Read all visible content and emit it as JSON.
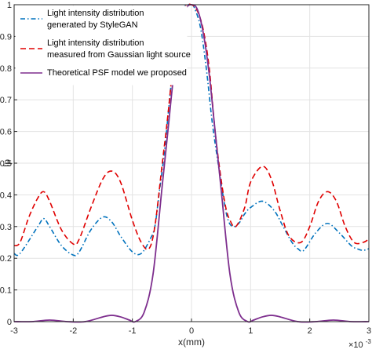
{
  "chart_data": {
    "type": "line",
    "xlabel": "x(mm)",
    "ylabel": "Ip",
    "x_multiplier": "×10",
    "x_multiplier_exp": "-3",
    "xlim": [
      -3,
      3
    ],
    "ylim": [
      0,
      1
    ],
    "xticks": [
      -3,
      -2,
      -1,
      0,
      1,
      2,
      3
    ],
    "yticks": [
      0,
      0.1,
      0.2,
      0.3,
      0.4,
      0.5,
      0.6,
      0.7,
      0.8,
      0.9,
      1
    ],
    "xtick_labels": [
      "-3",
      "-2",
      "-1",
      "0",
      "1",
      "2",
      "3"
    ],
    "ytick_labels": [
      "0",
      "0.1",
      "0.2",
      "0.3",
      "0.4",
      "0.5",
      "0.6",
      "0.7",
      "0.8",
      "0.9",
      "1"
    ],
    "grid": true,
    "legend_position": "top-left",
    "series": [
      {
        "name": "Light intensity distribution generated by StyleGAN",
        "legend_lines": [
          "Light intensity distribution",
          "generated by StyleGAN"
        ],
        "color": "#0072BD",
        "dash": "dashdot",
        "x": [
          -3.0,
          -2.9,
          -2.6,
          -2.5,
          -2.4,
          -2.2,
          -2.0,
          -1.9,
          -1.7,
          -1.5,
          -1.35,
          -1.2,
          -1.0,
          -0.85,
          -0.7,
          -0.62,
          -0.55,
          -0.45,
          -0.35,
          -0.25,
          -0.15,
          -0.05,
          0.0,
          0.05,
          0.15,
          0.25,
          0.35,
          0.45,
          0.55,
          0.62,
          0.7,
          0.8,
          0.9,
          1.0,
          1.2,
          1.4,
          1.55,
          1.7,
          1.8,
          1.9,
          2.1,
          2.3,
          2.5,
          2.7,
          2.8,
          2.9,
          3.0
        ],
        "y": [
          0.215,
          0.215,
          0.3,
          0.325,
          0.3,
          0.24,
          0.21,
          0.22,
          0.29,
          0.33,
          0.315,
          0.27,
          0.22,
          0.215,
          0.26,
          0.3,
          0.4,
          0.55,
          0.74,
          0.9,
          0.985,
          1.0,
          1.0,
          0.99,
          0.93,
          0.8,
          0.63,
          0.5,
          0.38,
          0.32,
          0.3,
          0.31,
          0.34,
          0.36,
          0.38,
          0.35,
          0.3,
          0.25,
          0.23,
          0.225,
          0.28,
          0.31,
          0.28,
          0.24,
          0.23,
          0.225,
          0.23
        ]
      },
      {
        "name": "Light intensity distribution measured from Gaussian light source",
        "legend_lines": [
          "Light intensity distribution",
          "measured from Gaussian light source"
        ],
        "color": "#E00000",
        "dash": "dashed",
        "x": [
          -3.0,
          -2.9,
          -2.75,
          -2.6,
          -2.5,
          -2.4,
          -2.2,
          -2.0,
          -1.9,
          -1.7,
          -1.5,
          -1.35,
          -1.2,
          -1.0,
          -0.85,
          -0.72,
          -0.62,
          -0.5,
          -0.4,
          -0.3,
          -0.2,
          -0.1,
          0.0,
          0.1,
          0.2,
          0.3,
          0.4,
          0.5,
          0.58,
          0.65,
          0.75,
          0.9,
          1.0,
          1.2,
          1.35,
          1.5,
          1.65,
          1.85,
          2.0,
          2.15,
          2.3,
          2.45,
          2.6,
          2.75,
          2.9,
          3.0
        ],
        "y": [
          0.24,
          0.25,
          0.33,
          0.39,
          0.41,
          0.38,
          0.29,
          0.245,
          0.26,
          0.36,
          0.45,
          0.475,
          0.44,
          0.32,
          0.25,
          0.23,
          0.3,
          0.49,
          0.65,
          0.83,
          0.95,
          0.995,
          1.0,
          0.98,
          0.92,
          0.8,
          0.6,
          0.45,
          0.36,
          0.32,
          0.3,
          0.36,
          0.44,
          0.49,
          0.45,
          0.35,
          0.27,
          0.25,
          0.3,
          0.38,
          0.41,
          0.38,
          0.3,
          0.25,
          0.25,
          0.26
        ]
      },
      {
        "name": "Theoretical PSF model we proposed",
        "legend_lines": [
          "Theoretical PSF model we proposed"
        ],
        "color": "#7E2F8E",
        "dash": "solid",
        "x": [
          -3.0,
          -2.7,
          -2.4,
          -2.1,
          -1.8,
          -1.5,
          -1.35,
          -1.2,
          -1.05,
          -0.95,
          -0.8,
          -0.65,
          -0.5,
          -0.4,
          -0.3,
          -0.2,
          -0.1,
          0.0,
          0.1,
          0.2,
          0.3,
          0.4,
          0.5,
          0.65,
          0.8,
          0.95,
          1.05,
          1.2,
          1.35,
          1.5,
          1.8,
          2.1,
          2.4,
          2.7,
          3.0
        ],
        "y": [
          0.0,
          0.0,
          0.005,
          0.0,
          0.0,
          0.015,
          0.02,
          0.015,
          0.005,
          0.0,
          0.03,
          0.15,
          0.42,
          0.6,
          0.78,
          0.91,
          0.985,
          1.0,
          0.985,
          0.91,
          0.78,
          0.6,
          0.42,
          0.15,
          0.03,
          0.0,
          0.005,
          0.015,
          0.02,
          0.015,
          0.0,
          0.0,
          0.005,
          0.0,
          0.0
        ]
      }
    ]
  }
}
